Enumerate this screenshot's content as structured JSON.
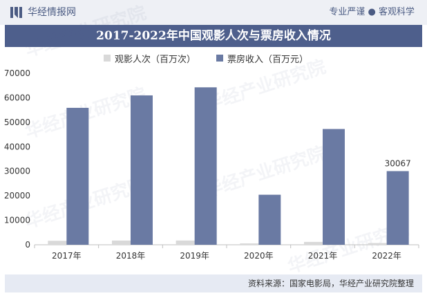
{
  "header": {
    "site_name": "华经情报网",
    "tagline": "专业严谨 ● 客观科学"
  },
  "footer": {
    "source": "资料来源：国家电影局，华经产业研究院整理"
  },
  "watermark": {
    "text": "华经产业研究院"
  },
  "colors": {
    "header_bg": "#eef0f5",
    "title_bg": "#4e5f8c",
    "series_viewers": "#d9d9d9",
    "series_boxoffice": "#6a7aa3"
  },
  "chart_data": {
    "type": "bar",
    "title": "2017-2022年中国观影人次与票房收入情况",
    "categories": [
      "2017年",
      "2018年",
      "2019年",
      "2020年",
      "2021年",
      "2022年"
    ],
    "series": [
      {
        "name": "观影人次（百万次）",
        "values": [
          1620,
          1720,
          1730,
          550,
          1170,
          710
        ]
      },
      {
        "name": "票房收入（百万元）",
        "values": [
          55900,
          60980,
          64270,
          20420,
          47260,
          30067
        ]
      }
    ],
    "data_labels": [
      {
        "series": 1,
        "index": 5,
        "text": "30067"
      }
    ],
    "ylim": [
      0,
      70000
    ],
    "yticks": [
      "0",
      "10000",
      "20000",
      "30000",
      "40000",
      "50000",
      "60000",
      "70000"
    ],
    "legend_position": "top",
    "grid": false
  }
}
